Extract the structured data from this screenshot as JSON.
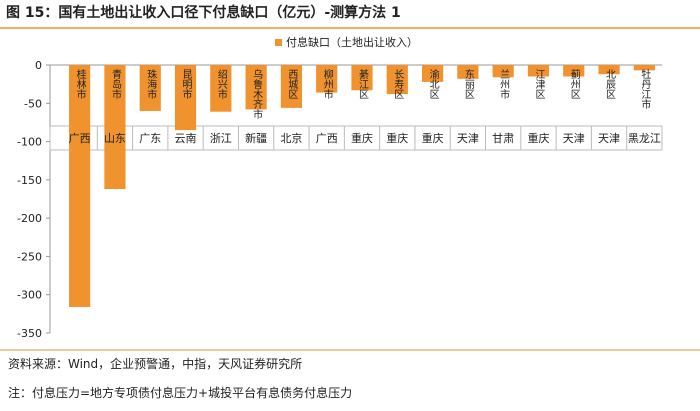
{
  "title": "图 15：国有土地出让收入口径下付息缺口（亿元）-测算方法 1",
  "chart_data": {
    "type": "bar",
    "categories": [
      "桂林市",
      "青岛市",
      "珠海市",
      "昆明市",
      "绍兴市",
      "乌鲁木齐市",
      "西城区",
      "柳州市",
      "綦江区",
      "长寿区",
      "渝北区",
      "东丽区",
      "兰州市",
      "江津区",
      "蓟州区",
      "北辰区",
      "牡丹江市"
    ],
    "regions": [
      "广西",
      "山东",
      "广东",
      "云南",
      "浙江",
      "新疆",
      "北京",
      "广西",
      "重庆",
      "重庆",
      "重庆",
      "天津",
      "甘肃",
      "重庆",
      "天津",
      "天津",
      "黑龙江"
    ],
    "series": [
      {
        "name": "付息缺口（土地出让收入）",
        "color": "#f0922e",
        "values": [
          -316,
          -162,
          -60,
          -85,
          -61,
          -58,
          -56,
          -36,
          -33,
          -38,
          -22,
          -18,
          -16,
          -15,
          -15,
          -12,
          -7
        ]
      }
    ],
    "ylim": [
      -350,
      0
    ],
    "yticks": [
      0,
      -50,
      -100,
      -150,
      -200,
      -250,
      -300,
      -350
    ]
  },
  "source": "资料来源：Wind，企业预警通，中指，天风证券研究所",
  "note": "注：付息压力=地方专项债付息压力+城投平台有息债务付息压力"
}
